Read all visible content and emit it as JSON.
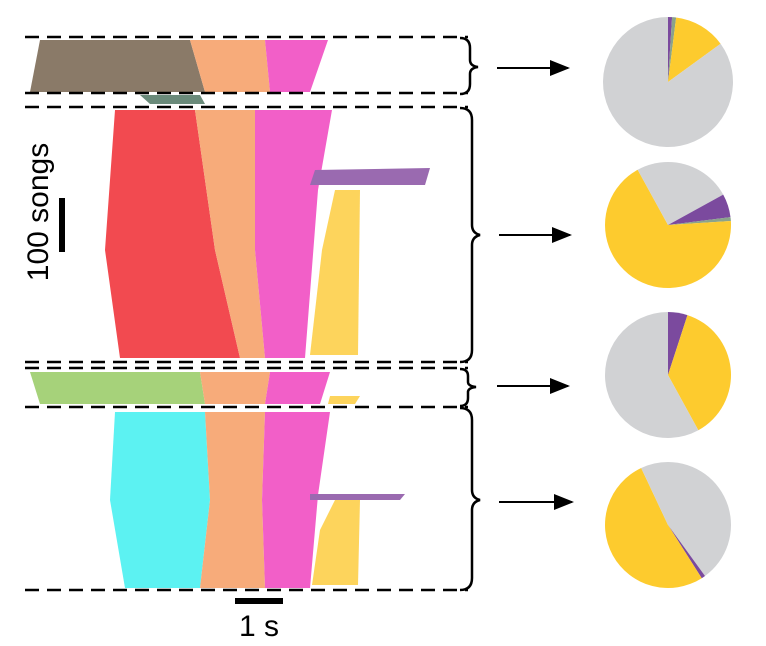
{
  "scale_bars": {
    "vertical": "100 songs",
    "horizontal": "1 s"
  },
  "chart_data": [
    {
      "type": "pie",
      "values": [
        1,
        1,
        13,
        85
      ],
      "colors": [
        "#7b4a9e",
        "#8aa38a",
        "#fdcb2e",
        "#d1d2d4"
      ]
    },
    {
      "type": "pie",
      "values": [
        17,
        6,
        1,
        68,
        8
      ],
      "colors": [
        "#d1d2d4",
        "#7b4a9e",
        "#8aa38a",
        "#fdcb2e",
        "#d1d2d4"
      ]
    },
    {
      "type": "pie",
      "values": [
        5,
        37,
        58
      ],
      "colors": [
        "#7b4a9e",
        "#fdcb2e",
        "#d1d2d4"
      ]
    },
    {
      "type": "pie",
      "values": [
        40,
        1,
        52,
        7
      ],
      "colors": [
        "#d1d2d4",
        "#7b4a9e",
        "#fdcb2e",
        "#d1d2d4"
      ]
    }
  ]
}
